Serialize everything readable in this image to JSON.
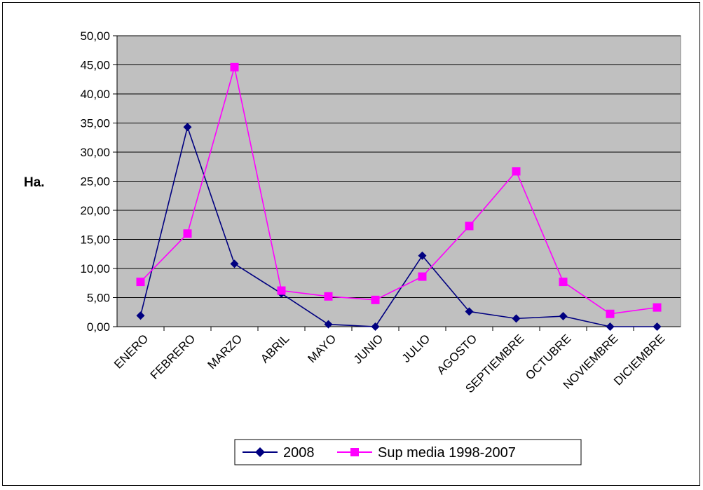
{
  "chart_data": {
    "type": "line",
    "ylabel": "Ha.",
    "xlabel": "",
    "ylim": [
      0,
      50
    ],
    "y_tick_step": 5,
    "y_ticks": [
      "0,00",
      "5,00",
      "10,00",
      "15,00",
      "20,00",
      "25,00",
      "30,00",
      "35,00",
      "40,00",
      "45,00",
      "50,00"
    ],
    "categories": [
      "ENERO",
      "FEBRERO",
      "MARZO",
      "ABRIL",
      "MAYO",
      "JUNIO",
      "JULIO",
      "AGOSTO",
      "SEPTIEMBRE",
      "OCTUBRE",
      "NOVIEMBRE",
      "DICIEMBRE"
    ],
    "series": [
      {
        "name": "2008",
        "color": "#000080",
        "marker": "diamond",
        "values": [
          1.9,
          34.3,
          10.8,
          5.7,
          0.4,
          0.0,
          12.2,
          2.6,
          1.4,
          1.8,
          0.0,
          0.0
        ]
      },
      {
        "name": "Sup media 1998-2007",
        "color": "#FF00FF",
        "marker": "square",
        "values": [
          7.7,
          16.0,
          44.6,
          6.2,
          5.2,
          4.6,
          8.6,
          17.3,
          26.7,
          7.7,
          2.2,
          3.3
        ]
      }
    ],
    "grid": true,
    "plot_background": "#C0C0C0",
    "legend_position": "bottom"
  }
}
